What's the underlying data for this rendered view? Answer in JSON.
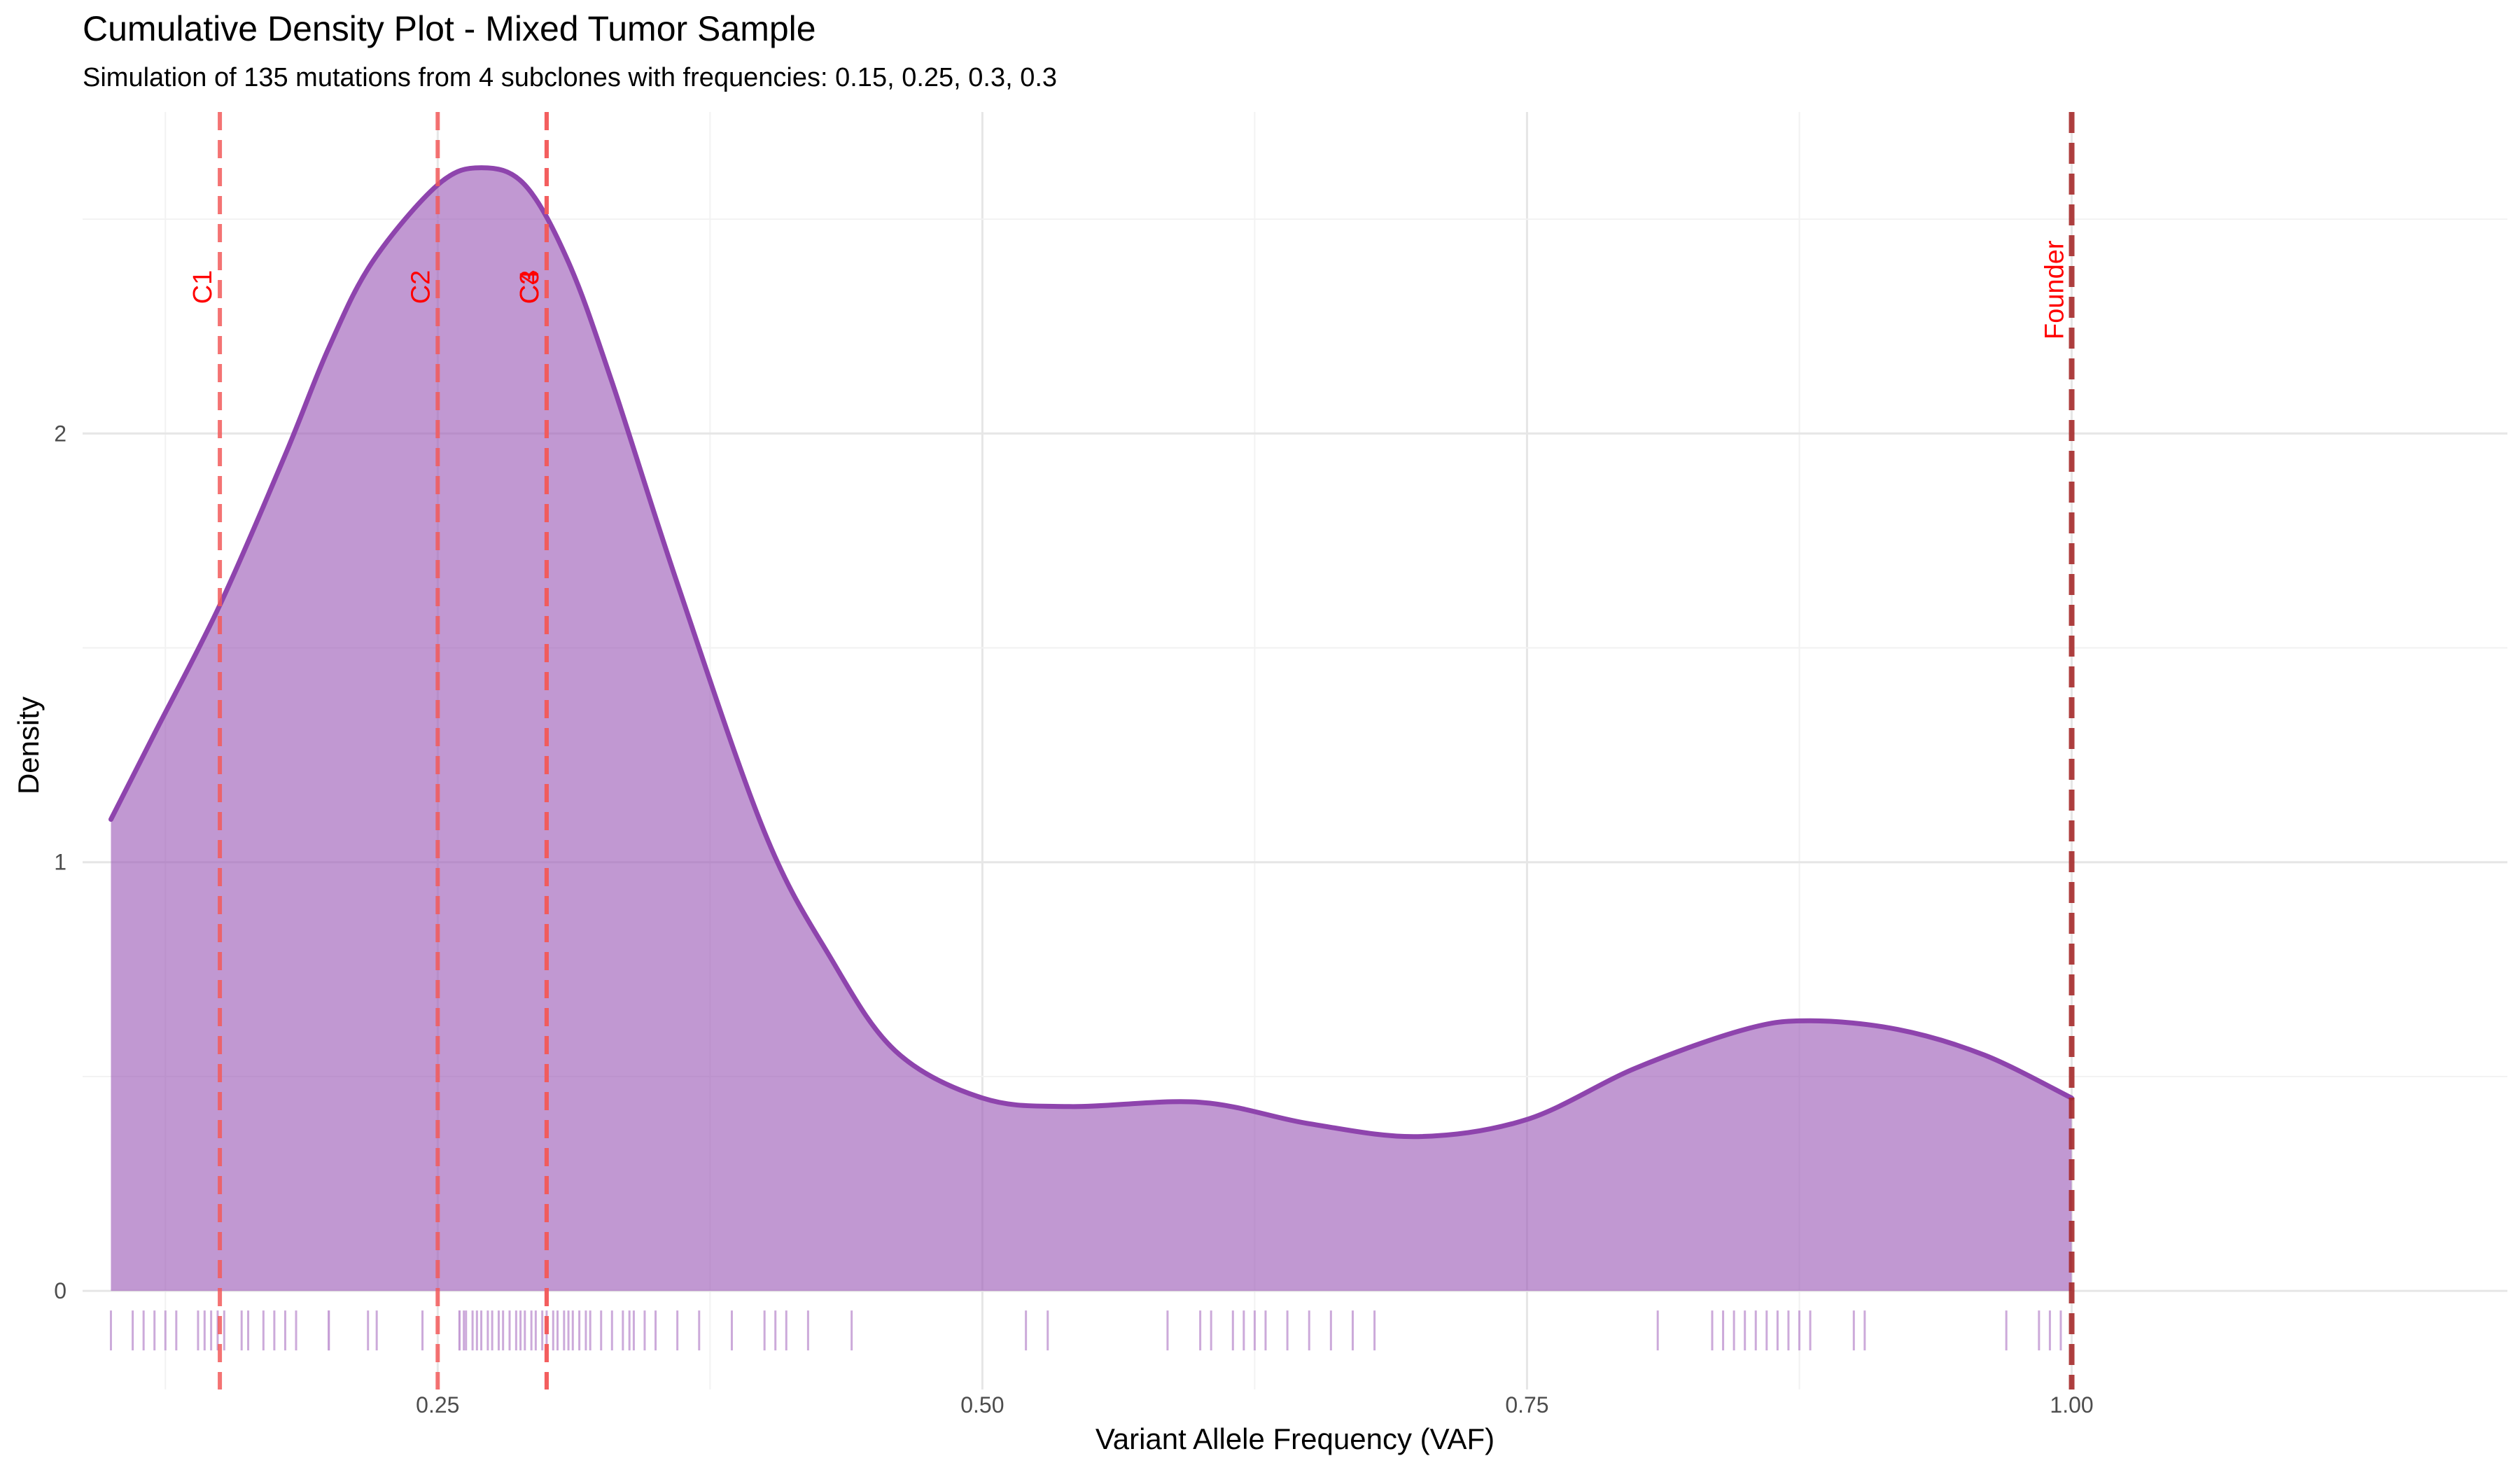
{
  "chart_data": {
    "type": "area",
    "title": "Cumulative Density Plot - Mixed Tumor Sample",
    "subtitle": "Simulation of 135 mutations from 4 subclones with frequencies: 0.15, 0.25, 0.3, 0.3",
    "xlabel": "Variant Allele Frequency (VAF)",
    "ylabel": "Density",
    "xlim": [
      0.087,
      1.2
    ],
    "ylim": [
      -0.23,
      2.75
    ],
    "x_ticks": [
      0.25,
      0.5,
      0.75,
      1.0
    ],
    "x_tick_labels": [
      "0.25",
      "0.50",
      "0.75",
      "1.00"
    ],
    "y_ticks": [
      0,
      1,
      2
    ],
    "y_tick_labels": [
      "0",
      "1",
      "2"
    ],
    "grid": true,
    "legend": "none",
    "colors": {
      "density_fill": "#9b59b6",
      "density_line": "#8e44ad",
      "rug": "#c39bd3",
      "subclone_line": "#f25a5a",
      "founder_line": "#a52a2a",
      "annotation_text": "#ff0000",
      "grid_major": "#e6e6e6",
      "grid_minor": "#f2f2f2",
      "axis_text": "#4d4d4d"
    },
    "density": {
      "x": [
        0.1,
        0.12,
        0.15,
        0.18,
        0.2,
        0.22,
        0.25,
        0.27,
        0.29,
        0.31,
        0.33,
        0.36,
        0.4,
        0.43,
        0.46,
        0.5,
        0.54,
        0.6,
        0.65,
        0.7,
        0.75,
        0.8,
        0.85,
        0.88,
        0.92,
        0.96,
        1.0
      ],
      "y": [
        1.1,
        1.3,
        1.6,
        1.95,
        2.2,
        2.4,
        2.58,
        2.62,
        2.58,
        2.4,
        2.12,
        1.65,
        1.07,
        0.78,
        0.56,
        0.45,
        0.43,
        0.44,
        0.39,
        0.36,
        0.4,
        0.52,
        0.61,
        0.63,
        0.61,
        0.55,
        0.45
      ]
    },
    "vertical_lines": [
      {
        "x": 0.15,
        "label": "C1",
        "kind": "subclone"
      },
      {
        "x": 0.25,
        "label": "C2",
        "kind": "subclone"
      },
      {
        "x": 0.3,
        "label": "C3",
        "kind": "subclone"
      },
      {
        "x": 0.3,
        "label": "C4",
        "kind": "subclone"
      },
      {
        "x": 1.0,
        "label": "Founder",
        "kind": "founder"
      }
    ],
    "rug_values": [
      0.1,
      0.11,
      0.115,
      0.12,
      0.125,
      0.13,
      0.14,
      0.143,
      0.146,
      0.149,
      0.152,
      0.16,
      0.163,
      0.17,
      0.175,
      0.18,
      0.185,
      0.2,
      0.2,
      0.218,
      0.222,
      0.243,
      0.26,
      0.263,
      0.266,
      0.27,
      0.275,
      0.28,
      0.286,
      0.29,
      0.295,
      0.3,
      0.305,
      0.31,
      0.315,
      0.32,
      0.33,
      0.335,
      0.34,
      0.35,
      0.26,
      0.262,
      0.268,
      0.273,
      0.278,
      0.283,
      0.288,
      0.293,
      0.298,
      0.303,
      0.308,
      0.312,
      0.318,
      0.325,
      0.338,
      0.345,
      0.36,
      0.37,
      0.385,
      0.4,
      0.405,
      0.41,
      0.42,
      0.44,
      0.52,
      0.53,
      0.585,
      0.6,
      0.605,
      0.615,
      0.62,
      0.625,
      0.63,
      0.64,
      0.65,
      0.66,
      0.67,
      0.68,
      0.81,
      0.835,
      0.84,
      0.845,
      0.85,
      0.855,
      0.86,
      0.865,
      0.87,
      0.875,
      0.88,
      0.9,
      0.905,
      0.97,
      0.985,
      0.99,
      0.995
    ]
  }
}
